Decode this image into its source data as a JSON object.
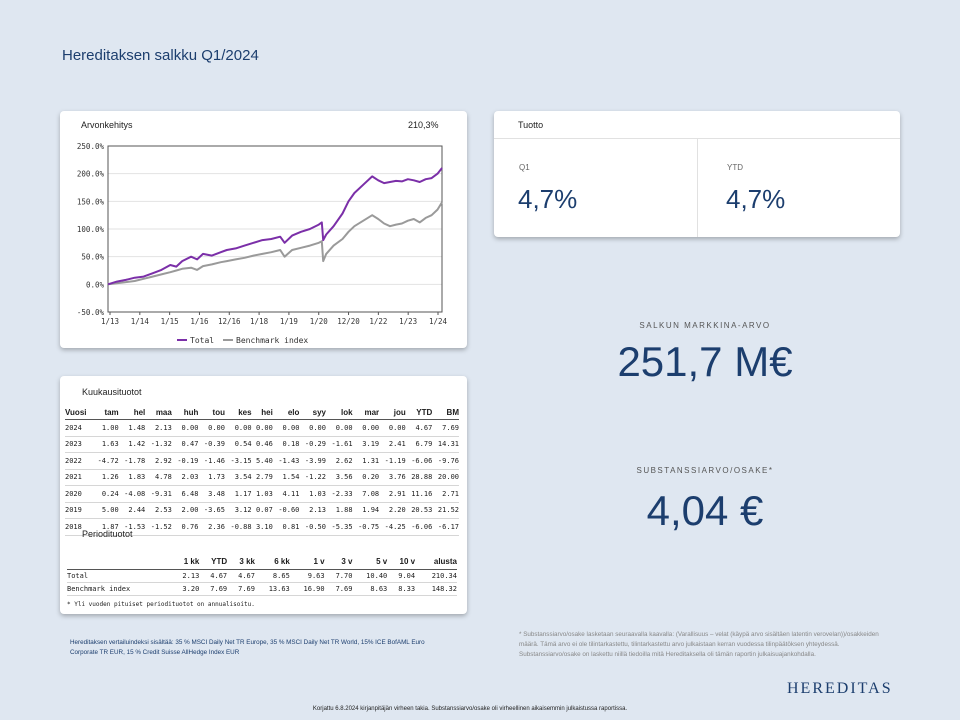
{
  "page_title": "Hereditaksen salkku Q1/2024",
  "value_card": {
    "title": "Arvonkehitys",
    "value": "210,3%"
  },
  "chart_data": {
    "type": "line",
    "x_ticks": [
      "1/13",
      "1/14",
      "1/15",
      "1/16",
      "12/16",
      "1/18",
      "1/19",
      "1/20",
      "12/20",
      "1/22",
      "1/23",
      "1/24"
    ],
    "y_ticks": [
      "250.0%",
      "200.0%",
      "150.0%",
      "100.0%",
      "50.0%",
      "0.0%",
      "-50.0%"
    ],
    "ylim": [
      -50,
      250
    ],
    "xlim": [
      2013.0,
      2024.25
    ],
    "legend_position": "bottom",
    "series": [
      {
        "name": "Total",
        "color": "#7b2fa8",
        "x": [
          2013.0,
          2013.3,
          2013.6,
          2013.9,
          2014.2,
          2014.5,
          2014.8,
          2015.1,
          2015.3,
          2015.5,
          2015.8,
          2016.0,
          2016.2,
          2016.5,
          2016.8,
          2017.0,
          2017.3,
          2017.6,
          2017.9,
          2018.2,
          2018.5,
          2018.8,
          2018.95,
          2019.2,
          2019.5,
          2019.8,
          2020.1,
          2020.2,
          2020.25,
          2020.35,
          2020.6,
          2020.9,
          2021.1,
          2021.3,
          2021.6,
          2021.9,
          2022.1,
          2022.3,
          2022.5,
          2022.7,
          2022.9,
          2023.1,
          2023.3,
          2023.5,
          2023.7,
          2023.9,
          2024.1,
          2024.25
        ],
        "y": [
          0,
          5,
          8,
          12,
          14,
          20,
          26,
          35,
          32,
          42,
          50,
          45,
          55,
          52,
          58,
          62,
          65,
          70,
          75,
          80,
          82,
          86,
          75,
          88,
          95,
          100,
          108,
          112,
          80,
          90,
          105,
          128,
          150,
          165,
          180,
          195,
          188,
          183,
          185,
          187,
          186,
          190,
          188,
          185,
          190,
          192,
          200,
          210.3
        ]
      },
      {
        "name": "Benchmark index",
        "color": "#9a9a9a",
        "x": [
          2013.0,
          2013.3,
          2013.6,
          2013.9,
          2014.2,
          2014.5,
          2014.8,
          2015.1,
          2015.3,
          2015.5,
          2015.8,
          2016.0,
          2016.2,
          2016.5,
          2016.8,
          2017.0,
          2017.3,
          2017.6,
          2017.9,
          2018.2,
          2018.5,
          2018.8,
          2018.95,
          2019.2,
          2019.5,
          2019.8,
          2020.1,
          2020.2,
          2020.25,
          2020.35,
          2020.6,
          2020.9,
          2021.1,
          2021.3,
          2021.6,
          2021.9,
          2022.1,
          2022.3,
          2022.5,
          2022.7,
          2022.9,
          2023.1,
          2023.3,
          2023.5,
          2023.7,
          2023.9,
          2024.1,
          2024.25
        ],
        "y": [
          0,
          2,
          4,
          6,
          10,
          14,
          18,
          22,
          25,
          28,
          30,
          26,
          33,
          36,
          40,
          42,
          45,
          48,
          52,
          55,
          58,
          62,
          50,
          62,
          66,
          70,
          75,
          78,
          42,
          55,
          70,
          82,
          95,
          105,
          115,
          125,
          118,
          110,
          105,
          108,
          110,
          115,
          118,
          112,
          120,
          125,
          135,
          148.3
        ]
      }
    ]
  },
  "return_card": {
    "title": "Tuotto",
    "items": [
      {
        "label": "Q1",
        "value": "4,7%"
      },
      {
        "label": "YTD",
        "value": "4,7%"
      }
    ]
  },
  "market_value": {
    "label": "SALKUN MARKKINA-ARVO",
    "value": "251,7 M€"
  },
  "nav": {
    "label": "SUBSTANSSIARVO/OSAKE*",
    "value": "4,04 €"
  },
  "monthly": {
    "title": "Kuukausituotot",
    "headers": [
      "Vuosi",
      "tam",
      "hel",
      "maa",
      "huh",
      "tou",
      "kes",
      "hei",
      "elo",
      "syy",
      "lok",
      "mar",
      "jou",
      "YTD",
      "BM"
    ],
    "rows": [
      [
        "2024",
        "1.00",
        "1.48",
        "2.13",
        "0.00",
        "0.00",
        "0.00",
        "0.00",
        "0.00",
        "0.00",
        "0.00",
        "0.00",
        "0.00",
        "4.67",
        "7.69"
      ],
      [
        "2023",
        "1.63",
        "1.42",
        "-1.32",
        "0.47",
        "-0.39",
        "0.54",
        "0.46",
        "0.18",
        "-0.29",
        "-1.61",
        "3.19",
        "2.41",
        "6.79",
        "14.31"
      ],
      [
        "2022",
        "-4.72",
        "-1.78",
        "2.92",
        "-0.19",
        "-1.46",
        "-3.15",
        "5.40",
        "-1.43",
        "-3.99",
        "2.62",
        "1.31",
        "-1.19",
        "-6.06",
        "-9.76"
      ],
      [
        "2021",
        "1.26",
        "1.83",
        "4.78",
        "2.03",
        "1.73",
        "3.54",
        "2.79",
        "1.54",
        "-1.22",
        "3.56",
        "0.20",
        "3.76",
        "28.88",
        "20.00"
      ],
      [
        "2020",
        "0.24",
        "-4.08",
        "-9.31",
        "6.48",
        "3.48",
        "1.17",
        "1.03",
        "4.11",
        "1.03",
        "-2.33",
        "7.08",
        "2.91",
        "11.16",
        "2.71"
      ],
      [
        "2019",
        "5.00",
        "2.44",
        "2.53",
        "2.00",
        "-3.65",
        "3.12",
        "0.07",
        "-0.60",
        "2.13",
        "1.88",
        "1.94",
        "2.20",
        "20.53",
        "21.52"
      ],
      [
        "2018",
        "1.87",
        "-1.53",
        "-1.52",
        "0.76",
        "2.36",
        "-0.88",
        "3.10",
        "0.81",
        "-0.50",
        "-5.35",
        "-0.75",
        "-4.25",
        "-6.06",
        "-6.17"
      ]
    ]
  },
  "period": {
    "title": "Periodituotot",
    "headers": [
      "",
      "1 kk",
      "YTD",
      "3 kk",
      "6 kk",
      "1 v",
      "3 v",
      "5 v",
      "10 v",
      "alusta"
    ],
    "rows": [
      [
        "Total",
        "2.13",
        "4.67",
        "4.67",
        "8.65",
        "9.63",
        "7.70",
        "10.40",
        "9.04",
        "210.34"
      ],
      [
        "Benchmark index",
        "3.20",
        "7.69",
        "7.69",
        "13.63",
        "16.90",
        "7.69",
        "8.63",
        "8.33",
        "148.32"
      ]
    ],
    "note": "* Yli vuoden pituiset periodituotot on annualisoitu."
  },
  "benchmark_text": "Hereditaksen vertailuindeksi sisältää: 35 % MSCI Daily Net TR Europe, 35 % MSCI Daily Net TR World, 15% ICE BofAML Euro Corporate TR EUR, 15 % Credit Suisse AllHedge Index EUR",
  "footnote": "* Substanssiarvo/osake lasketaan seuraavalla kaavalla: (Varallisuus – velat (käypä arvo sisältäen latentin verovelan))/osakkeiden määrä. Tämä arvo ei ole tilintarkastettu, tilintarkastettu arvo julkaistaan kerran vuodessa tilinpäätöksen yhteydessä. Substanssiarvo/osake on laskettu niillä tiedoilla mitä Hereditaksella oli tämän raportin julkaisuajankohdalla.",
  "logo": "HEREDITAS",
  "correction": "Korjattu 6.8.2024 kirjanpitäjän virheen takia. Substanssiarvo/osake oli virheellinen aikaisemmin julkaistussa raportissa."
}
